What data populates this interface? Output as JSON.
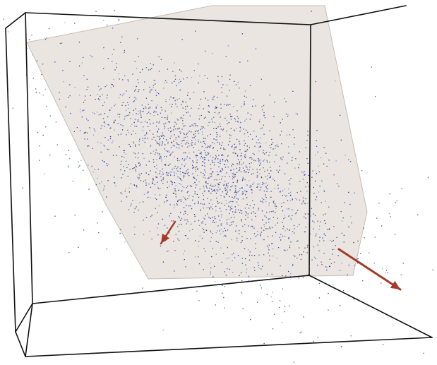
{
  "scene": {
    "background": "#ffffff",
    "point_color": "#2a3f9e",
    "point_color_dark": "#1a2370",
    "point_color_light": "#5b7fc4",
    "plane_color": "#d9cfc8",
    "box_edge_color": "#111111",
    "arrow_color": "#a33a2a",
    "approximate_point_count": 24000
  }
}
